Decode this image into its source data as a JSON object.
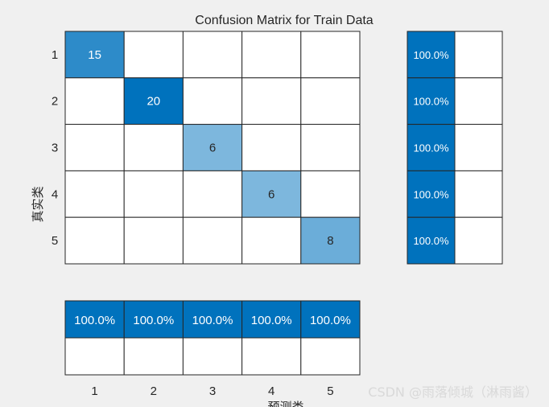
{
  "chart_data": {
    "type": "heatmap",
    "title": "Confusion Matrix for Train Data",
    "xlabel": "预测类",
    "ylabel": "真实类",
    "classes": [
      "1",
      "2",
      "3",
      "4",
      "5"
    ],
    "matrix": [
      [
        15,
        0,
        0,
        0,
        0
      ],
      [
        0,
        20,
        0,
        0,
        0
      ],
      [
        0,
        0,
        6,
        0,
        0
      ],
      [
        0,
        0,
        0,
        6,
        0
      ],
      [
        0,
        0,
        0,
        0,
        8
      ]
    ],
    "row_summary": [
      "100.0%",
      "100.0%",
      "100.0%",
      "100.0%",
      "100.0%"
    ],
    "column_summary": [
      "100.0%",
      "100.0%",
      "100.0%",
      "100.0%",
      "100.0%"
    ],
    "colors": {
      "max": "#0072bd",
      "low": "#ffffff",
      "grid": "#262626",
      "summary": "#0072bd"
    }
  },
  "watermark": "CSDN @雨落倾城（淋雨酱）"
}
